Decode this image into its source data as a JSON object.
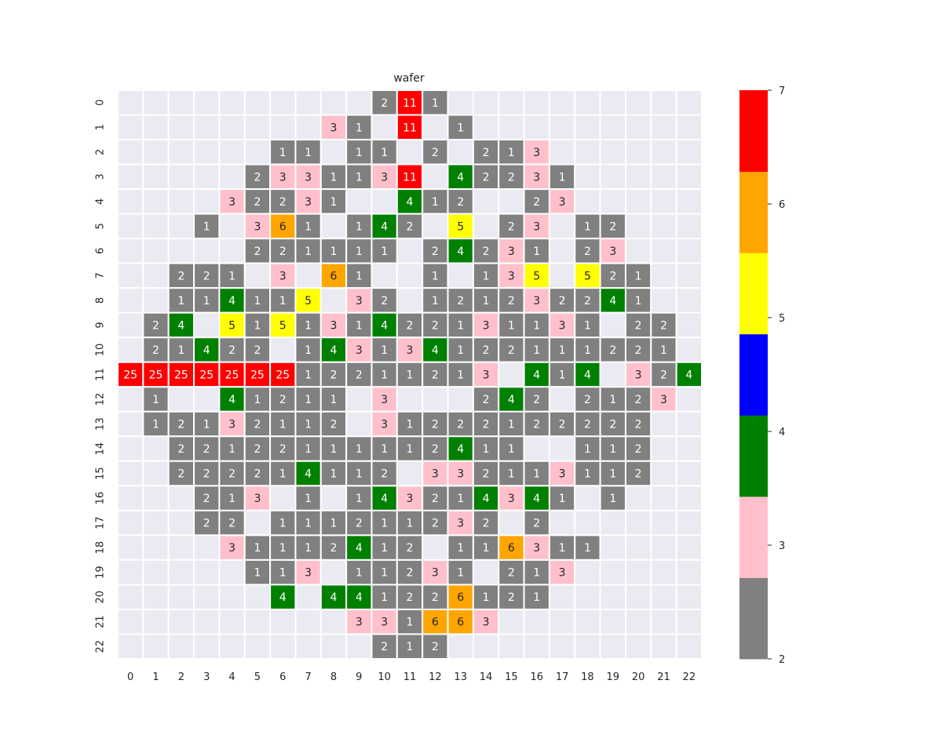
{
  "chart_data": {
    "type": "heatmap",
    "title": "wafer",
    "xlabel": "",
    "ylabel": "",
    "x_ticks": [
      "0",
      "1",
      "2",
      "3",
      "4",
      "5",
      "6",
      "7",
      "8",
      "9",
      "10",
      "11",
      "12",
      "13",
      "14",
      "15",
      "16",
      "17",
      "18",
      "19",
      "20",
      "21",
      "22"
    ],
    "y_ticks": [
      "0",
      "1",
      "2",
      "3",
      "4",
      "5",
      "6",
      "7",
      "8",
      "9",
      "10",
      "11",
      "12",
      "13",
      "14",
      "15",
      "16",
      "17",
      "18",
      "19",
      "20",
      "21",
      "22"
    ],
    "values": [
      [
        null,
        null,
        null,
        null,
        null,
        null,
        null,
        null,
        null,
        null,
        2,
        11,
        1,
        null,
        null,
        null,
        null,
        null,
        null,
        null,
        null,
        null,
        null
      ],
      [
        null,
        null,
        null,
        null,
        null,
        null,
        null,
        null,
        3,
        1,
        null,
        11,
        null,
        1,
        null,
        null,
        null,
        null,
        null,
        null,
        null,
        null,
        null
      ],
      [
        null,
        null,
        null,
        null,
        null,
        null,
        1,
        1,
        null,
        1,
        1,
        null,
        2,
        null,
        2,
        1,
        3,
        null,
        null,
        null,
        null,
        null,
        null
      ],
      [
        null,
        null,
        null,
        null,
        null,
        2,
        3,
        3,
        1,
        1,
        3,
        11,
        null,
        4,
        2,
        2,
        3,
        1,
        null,
        null,
        null,
        null,
        null
      ],
      [
        null,
        null,
        null,
        null,
        3,
        2,
        2,
        3,
        1,
        null,
        null,
        4,
        1,
        2,
        null,
        null,
        2,
        3,
        null,
        null,
        null,
        null,
        null
      ],
      [
        null,
        null,
        null,
        1,
        null,
        3,
        6,
        1,
        null,
        1,
        4,
        2,
        null,
        5,
        null,
        2,
        3,
        null,
        1,
        2,
        null,
        null,
        null
      ],
      [
        null,
        null,
        null,
        null,
        null,
        2,
        2,
        1,
        1,
        1,
        1,
        null,
        2,
        4,
        2,
        3,
        1,
        null,
        2,
        3,
        null,
        null,
        null
      ],
      [
        null,
        null,
        2,
        2,
        1,
        null,
        3,
        null,
        6,
        1,
        null,
        null,
        1,
        null,
        1,
        3,
        5,
        null,
        5,
        2,
        1,
        null,
        null
      ],
      [
        null,
        null,
        1,
        1,
        4,
        1,
        1,
        5,
        null,
        3,
        2,
        null,
        1,
        2,
        1,
        2,
        3,
        2,
        2,
        4,
        1,
        null,
        null
      ],
      [
        null,
        2,
        4,
        null,
        5,
        1,
        5,
        1,
        3,
        1,
        4,
        2,
        2,
        1,
        3,
        1,
        1,
        3,
        1,
        null,
        2,
        2,
        null
      ],
      [
        null,
        2,
        1,
        4,
        2,
        2,
        null,
        1,
        4,
        3,
        1,
        3,
        4,
        1,
        2,
        2,
        1,
        1,
        1,
        2,
        2,
        1,
        null
      ],
      [
        25,
        25,
        25,
        25,
        25,
        25,
        25,
        1,
        2,
        2,
        1,
        1,
        2,
        1,
        3,
        null,
        4,
        1,
        4,
        null,
        3,
        2,
        4
      ],
      [
        null,
        1,
        null,
        null,
        4,
        1,
        2,
        1,
        1,
        null,
        3,
        null,
        null,
        null,
        2,
        4,
        2,
        null,
        2,
        1,
        2,
        3,
        null
      ],
      [
        null,
        1,
        2,
        1,
        3,
        2,
        1,
        1,
        2,
        null,
        3,
        1,
        2,
        2,
        2,
        1,
        2,
        2,
        2,
        2,
        2,
        null,
        null
      ],
      [
        null,
        null,
        2,
        2,
        1,
        2,
        2,
        1,
        1,
        1,
        1,
        1,
        2,
        4,
        1,
        1,
        null,
        null,
        1,
        1,
        2,
        null,
        null
      ],
      [
        null,
        null,
        2,
        2,
        2,
        2,
        1,
        4,
        1,
        1,
        2,
        null,
        3,
        3,
        2,
        1,
        1,
        3,
        1,
        1,
        2,
        null,
        null
      ],
      [
        null,
        null,
        null,
        2,
        1,
        3,
        null,
        1,
        null,
        1,
        4,
        3,
        2,
        1,
        4,
        3,
        4,
        1,
        null,
        1,
        null,
        null,
        null
      ],
      [
        null,
        null,
        null,
        2,
        2,
        null,
        1,
        1,
        1,
        2,
        1,
        1,
        2,
        3,
        2,
        null,
        2,
        null,
        null,
        null,
        null,
        null,
        null
      ],
      [
        null,
        null,
        null,
        null,
        3,
        1,
        1,
        1,
        2,
        4,
        1,
        2,
        null,
        1,
        1,
        6,
        3,
        1,
        1,
        null,
        null,
        null,
        null
      ],
      [
        null,
        null,
        null,
        null,
        null,
        1,
        1,
        3,
        null,
        1,
        1,
        2,
        3,
        1,
        null,
        2,
        1,
        3,
        null,
        null,
        null,
        null,
        null
      ],
      [
        null,
        null,
        null,
        null,
        null,
        null,
        4,
        null,
        4,
        4,
        1,
        2,
        2,
        6,
        1,
        2,
        1,
        null,
        null,
        null,
        null,
        null,
        null
      ],
      [
        null,
        null,
        null,
        null,
        null,
        null,
        null,
        null,
        null,
        3,
        3,
        1,
        6,
        6,
        3,
        null,
        null,
        null,
        null,
        null,
        null,
        null,
        null
      ],
      [
        null,
        null,
        null,
        null,
        null,
        null,
        null,
        null,
        null,
        null,
        2,
        1,
        2,
        null,
        null,
        null,
        null,
        null,
        null,
        null,
        null,
        null,
        null
      ]
    ],
    "colorbar": {
      "vmin": 2,
      "vmax": 7,
      "ticks": [
        "2",
        "3",
        "4",
        "5",
        "6",
        "7"
      ],
      "colors": [
        "#808080",
        "#ffc0cb",
        "#008000",
        "#0000ff",
        "#ffff00",
        "#ffa500",
        "#ff0000"
      ]
    },
    "nan_color": "#eaeaf2",
    "grid_color": "#ffffff",
    "legend_position": "right"
  }
}
